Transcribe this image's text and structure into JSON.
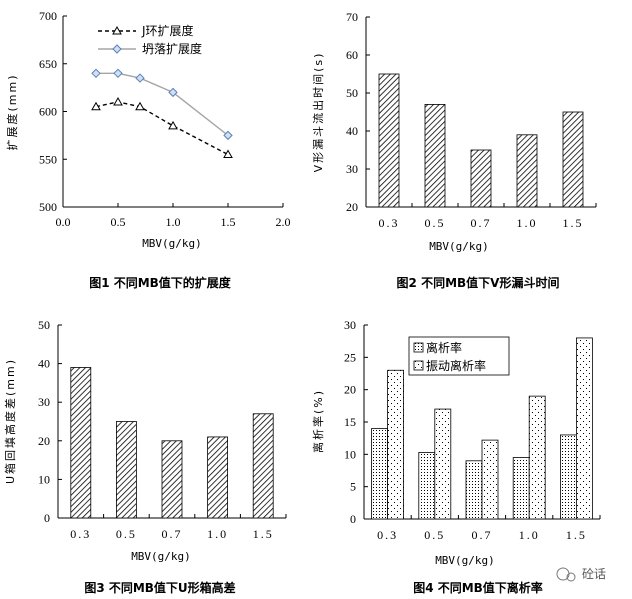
{
  "chart_data": [
    {
      "type": "line",
      "caption": "图1 不同MB值下的扩展度",
      "xlabel": "MBV(g/kg)",
      "ylabel": "扩展度(mm)",
      "xlim": [
        0.0,
        2.0
      ],
      "ylim": [
        500,
        700
      ],
      "xticks": [
        "0.0",
        "0.5",
        "1.0",
        "1.5",
        "2.0"
      ],
      "yticks": [
        "500",
        "550",
        "600",
        "650",
        "700"
      ],
      "legend_position": "top-left",
      "series": [
        {
          "name": "J环扩展度",
          "x": [
            0.3,
            0.5,
            0.7,
            1.0,
            1.5
          ],
          "values": [
            605,
            610,
            605,
            585,
            555
          ],
          "color": "#000000",
          "dash": "4 3",
          "marker": "triangle"
        },
        {
          "name": "坍落扩展度",
          "x": [
            0.3,
            0.5,
            0.7,
            1.0,
            1.5
          ],
          "values": [
            640,
            640,
            635,
            620,
            575
          ],
          "color": "#a6a6a6",
          "dash": "",
          "marker": "diamond"
        }
      ]
    },
    {
      "type": "bar",
      "caption": "图2 不同MB值下V形漏斗时间",
      "xlabel": "MBV(g/kg)",
      "ylabel": "V形漏斗流出时间(s)",
      "ylim": [
        20,
        70
      ],
      "categories": [
        "0.3",
        "0.5",
        "0.7",
        "1.0",
        "1.5"
      ],
      "yticks": [
        "20",
        "30",
        "40",
        "50",
        "60",
        "70"
      ],
      "series": [
        {
          "name": "V形漏斗流出时间",
          "values": [
            55,
            47,
            35,
            39,
            45
          ],
          "pattern": "hatch"
        }
      ]
    },
    {
      "type": "bar",
      "caption": "图3 不同MB值下U形箱高差",
      "xlabel": "MBV(g/kg)",
      "ylabel": "U箱回填高度差(mm)",
      "ylim": [
        0,
        50
      ],
      "categories": [
        "0.3",
        "0.5",
        "0.7",
        "1.0",
        "1.5"
      ],
      "yticks": [
        "0",
        "10",
        "20",
        "30",
        "40",
        "50"
      ],
      "series": [
        {
          "name": "U箱回填高度差",
          "values": [
            39,
            25,
            20,
            21,
            27
          ],
          "pattern": "hatch"
        }
      ]
    },
    {
      "type": "bar",
      "caption": "图4 不同MB值下离析率",
      "xlabel": "MBV(g/kg)",
      "ylabel": "离析率(%)",
      "ylim": [
        0,
        30
      ],
      "categories": [
        "0.3",
        "0.5",
        "0.7",
        "1.0",
        "1.5"
      ],
      "yticks": [
        "0",
        "5",
        "10",
        "15",
        "20",
        "25",
        "30"
      ],
      "legend_position": "top-left",
      "series": [
        {
          "name": "离析率",
          "values": [
            14,
            10.3,
            9,
            9.5,
            13
          ],
          "pattern": "dense-dots"
        },
        {
          "name": "振动离析率",
          "values": [
            23,
            17,
            12.2,
            19,
            28
          ],
          "pattern": "sparse-dots"
        }
      ]
    }
  ],
  "watermark": "砼话"
}
